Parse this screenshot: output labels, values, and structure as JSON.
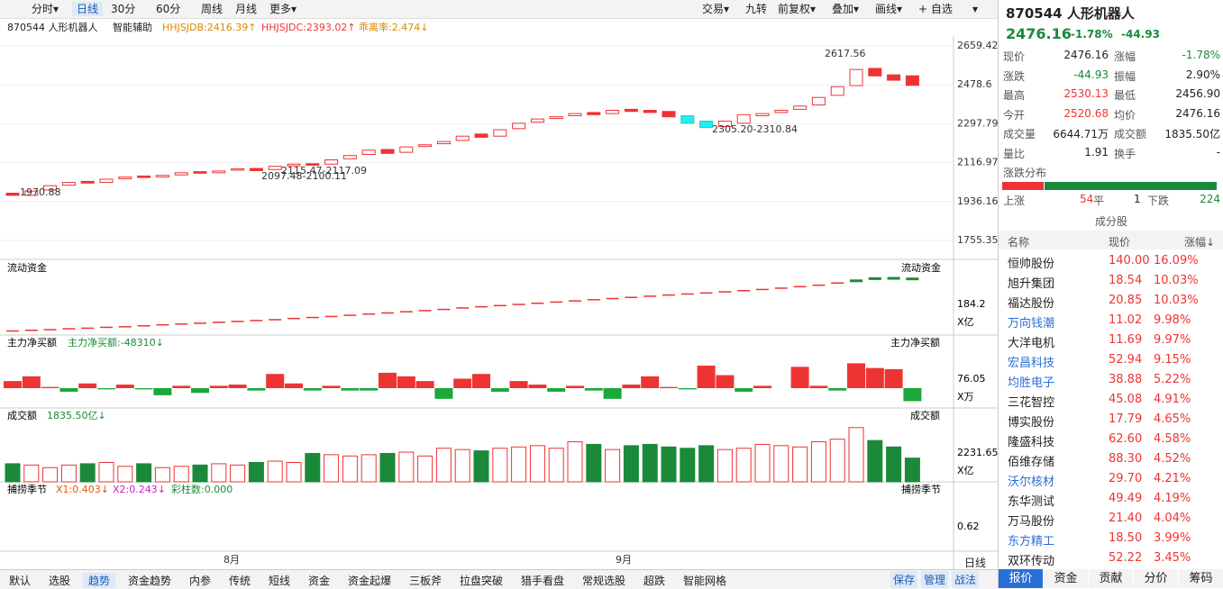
{
  "toolbar": {
    "left": [
      "分时▾",
      "日线",
      "30分",
      "60分",
      "周线",
      "月线",
      "更多▾"
    ],
    "right": [
      "交易▾",
      "九转",
      "前复权▾",
      "叠加▾",
      "画线▾",
      "+ 自选",
      "▾"
    ]
  },
  "chart": {
    "header": {
      "name": "870544 人形机器人",
      "assist": "智能辅助",
      "b": "HHJSJDB:2416.39↑",
      "c": "HHJSJDC:2393.02↑",
      "bias": "乖离率:2.474↓"
    },
    "price": {
      "ylim": [
        1755.35,
        2659.42
      ],
      "yticks": [
        1755.35,
        1936.16,
        2116.97,
        2297.79,
        2478.6,
        2659.42
      ],
      "open": [
        1975,
        1965,
        1990,
        2012,
        2030,
        2025,
        2042,
        2055,
        2050,
        2060,
        2075,
        2070,
        2082,
        2090,
        2085,
        2102,
        2112,
        2110,
        2135,
        2155,
        2178,
        2165,
        2192,
        2205,
        2220,
        2250,
        2240,
        2275,
        2305,
        2322,
        2335,
        2350,
        2345,
        2365,
        2360,
        2355,
        2335,
        2310,
        2285,
        2300,
        2335,
        2350,
        2365,
        2385,
        2430,
        2475,
        2555,
        2525,
        2520.68
      ],
      "close": [
        1965,
        1985,
        2010,
        2025,
        2022,
        2040,
        2050,
        2048,
        2058,
        2070,
        2068,
        2078,
        2088,
        2080,
        2100,
        2110,
        2105,
        2130,
        2150,
        2175,
        2160,
        2190,
        2200,
        2215,
        2240,
        2235,
        2270,
        2300,
        2320,
        2330,
        2345,
        2340,
        2360,
        2355,
        2350,
        2330,
        2300,
        2280,
        2310,
        2340,
        2345,
        2360,
        2380,
        2420,
        2470,
        2550,
        2520,
        2500,
        2476.16
      ],
      "annotations": [
        "2617.56",
        "1970.88",
        "2305.20-2310.84",
        "2115.47-2117.09",
        "2097.48-2100.11"
      ]
    },
    "months": [
      "8月",
      "9月"
    ],
    "flow": {
      "title": "流动资金",
      "tick": 184.2,
      "unit": "X亿",
      "values": [
        3,
        8,
        12,
        18,
        22,
        28,
        32,
        38,
        45,
        50,
        56,
        62,
        68,
        74,
        80,
        88,
        95,
        102,
        110,
        118,
        126,
        134,
        142,
        150,
        160,
        168,
        176,
        184,
        192,
        200,
        208,
        216,
        224,
        232,
        240,
        248,
        255,
        262,
        270,
        278,
        286,
        295,
        305,
        315,
        330,
        345,
        360,
        362,
        358
      ]
    },
    "netbuy": {
      "title": "主力净买额",
      "sub": "主力净买额:-48310↓",
      "tick": 76.05,
      "unit": "X万",
      "values": [
        60,
        100,
        10,
        -30,
        40,
        -10,
        30,
        -10,
        -60,
        20,
        -40,
        20,
        30,
        -20,
        120,
        40,
        -20,
        20,
        -20,
        -20,
        130,
        100,
        60,
        -90,
        80,
        120,
        -30,
        60,
        30,
        -30,
        20,
        -20,
        -90,
        30,
        100,
        10,
        -10,
        190,
        110,
        -30,
        20,
        0,
        180,
        20,
        -20,
        210,
        170,
        160,
        -110
      ]
    },
    "volume": {
      "title": "成交额",
      "sub": "1835.50亿↓",
      "tick": 2231.65,
      "unit": "X亿",
      "values": [
        1400,
        1300,
        1100,
        1300,
        1400,
        1500,
        1200,
        1400,
        1100,
        1200,
        1300,
        1400,
        1300,
        1500,
        1600,
        1500,
        2200,
        2100,
        2000,
        2100,
        2200,
        2300,
        2000,
        2600,
        2500,
        2400,
        2600,
        2700,
        2800,
        2600,
        3100,
        2900,
        2500,
        2800,
        2900,
        2700,
        2600,
        2800,
        2500,
        2600,
        2900,
        2800,
        2700,
        3100,
        3300,
        4200,
        3200,
        2700,
        1835.5
      ]
    },
    "season": {
      "title": "捕捞季节",
      "x1": "X1:0.403↓",
      "x2": "X2:0.243↓",
      "bars": "彩柱数:0.000",
      "tick": 0.62
    }
  },
  "quote": {
    "title": "870544 人形机器人",
    "price": "2476.16",
    "pct": "-1.78%",
    "chg": "-44.93",
    "rows": [
      [
        "现价",
        "2476.16",
        "涨幅",
        "-1.78%"
      ],
      [
        "涨跌",
        "-44.93",
        "振幅",
        "2.90%"
      ],
      [
        "最高",
        "2530.13",
        "最低",
        "2456.90"
      ],
      [
        "今开",
        "2520.68",
        "均价",
        "2476.16"
      ],
      [
        "成交量",
        "6644.71万",
        "成交额",
        "1835.50亿"
      ],
      [
        "量比",
        "1.91",
        "换手",
        "-"
      ]
    ],
    "dist": "涨跌分布",
    "up": "上涨",
    "up_n": 54,
    "flat": "平",
    "flat_n": 1,
    "down": "下跌",
    "down_n": 224
  },
  "stocks": {
    "title": "成分股",
    "header": [
      "名称",
      "现价",
      "涨幅↓"
    ],
    "rows": [
      [
        "恒帅股份",
        "140.00",
        "16.09%"
      ],
      [
        "旭升集团",
        "18.54",
        "10.03%"
      ],
      [
        "福达股份",
        "20.85",
        "10.03%"
      ],
      [
        "万向钱潮",
        "11.02",
        "9.98%"
      ],
      [
        "大洋电机",
        "11.69",
        "9.97%"
      ],
      [
        "宏昌科技",
        "52.94",
        "9.15%"
      ],
      [
        "均胜电子",
        "38.88",
        "5.22%"
      ],
      [
        "三花智控",
        "45.08",
        "4.91%"
      ],
      [
        "博实股份",
        "17.79",
        "4.65%"
      ],
      [
        "隆盛科技",
        "62.60",
        "4.58%"
      ],
      [
        "佰维存储",
        "88.30",
        "4.52%"
      ],
      [
        "沃尔核材",
        "29.70",
        "4.21%"
      ],
      [
        "东华测试",
        "49.49",
        "4.19%"
      ],
      [
        "万马股份",
        "21.40",
        "4.04%"
      ],
      [
        "东方精工",
        "18.50",
        "3.99%"
      ],
      [
        "双环传动",
        "52.22",
        "3.45%"
      ]
    ]
  },
  "bottom_tabs": [
    "默认",
    "选股",
    "趋势",
    "资金趋势",
    "内参",
    "传统",
    "短线",
    "资金",
    "资金起爆",
    "三板斧",
    "拉盘突破",
    "猎手看盘",
    "常规选股",
    "超跌",
    "智能网格"
  ],
  "bottom_right": [
    "保存",
    "管理",
    "战法"
  ],
  "period": "日线",
  "panel_tabs": [
    "报价",
    "资金",
    "贡献",
    "分价",
    "筹码"
  ]
}
